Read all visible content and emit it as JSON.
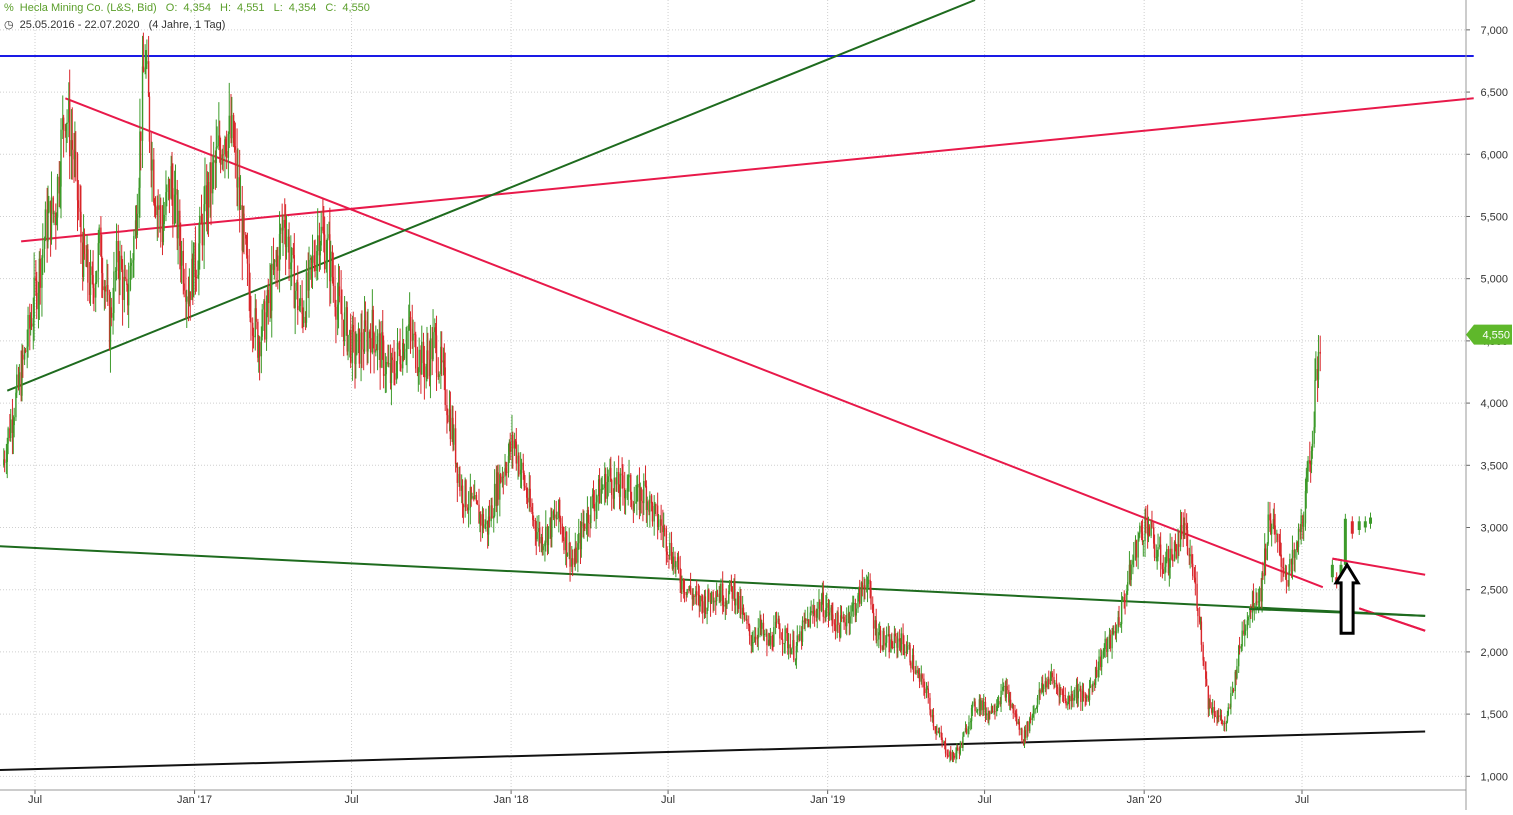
{
  "header": {
    "instrument": "Hecla Mining Co. (L&S, Bid)",
    "open_label": "O:",
    "open": "4,354",
    "high_label": "H:",
    "high": "4,551",
    "low_label": "L:",
    "low": "4,354",
    "close_label": "C:",
    "close": "4,550",
    "date_range": "25.05.2016 - 22.07.2020",
    "period": "(4 Jahre, 1 Tag)"
  },
  "colors": {
    "up_candle": "#3c9a2a",
    "down_candle": "#d9262b",
    "horizontal_line": "#1a1ae6",
    "red_line": "#e8194a",
    "green_line": "#1e6b1e",
    "black_line": "#111111",
    "price_tag": "#5fb82b",
    "grid": "#cfcfcf"
  },
  "chart_data": {
    "type": "candlestick",
    "y_ticks": [
      "1,000",
      "1,500",
      "2,000",
      "2,500",
      "3,000",
      "3,500",
      "4,000",
      "4,500",
      "5,000",
      "5,500",
      "6,000",
      "6,500",
      "7,000"
    ],
    "ylim": [
      0.89,
      7.24
    ],
    "x_ticks": [
      "Jul",
      "Jan '17",
      "Jul",
      "Jan '18",
      "Jul",
      "Jan '19",
      "Jul",
      "Jan '20",
      "Jul"
    ],
    "last_price_label": "4,550",
    "last_price": 4.55,
    "close_path": [
      [
        "2016-05-25",
        3.5
      ],
      [
        "2016-06-05",
        3.9
      ],
      [
        "2016-06-15",
        4.2
      ],
      [
        "2016-06-25",
        4.6
      ],
      [
        "2016-07-05",
        5.0
      ],
      [
        "2016-07-15",
        5.45
      ],
      [
        "2016-07-25",
        5.55
      ],
      [
        "2016-08-05",
        6.4
      ],
      [
        "2016-08-15",
        6.0
      ],
      [
        "2016-08-25",
        5.2
      ],
      [
        "2016-09-05",
        4.9
      ],
      [
        "2016-09-15",
        5.3
      ],
      [
        "2016-09-25",
        4.6
      ],
      [
        "2016-10-05",
        5.2
      ],
      [
        "2016-10-15",
        4.8
      ],
      [
        "2016-10-25",
        5.4
      ],
      [
        "2016-11-05",
        6.8
      ],
      [
        "2016-11-15",
        5.8
      ],
      [
        "2016-11-25",
        5.4
      ],
      [
        "2016-12-05",
        5.8
      ],
      [
        "2016-12-15",
        5.3
      ],
      [
        "2016-12-25",
        4.9
      ],
      [
        "2017-01-05",
        5.2
      ],
      [
        "2017-01-15",
        5.6
      ],
      [
        "2017-01-25",
        5.9
      ],
      [
        "2017-02-05",
        6.2
      ],
      [
        "2017-02-15",
        6.1
      ],
      [
        "2017-02-25",
        5.4
      ],
      [
        "2017-03-05",
        4.9
      ],
      [
        "2017-03-15",
        4.5
      ],
      [
        "2017-03-25",
        4.7
      ],
      [
        "2017-04-05",
        5.1
      ],
      [
        "2017-04-15",
        5.5
      ],
      [
        "2017-04-25",
        5.0
      ],
      [
        "2017-05-05",
        4.7
      ],
      [
        "2017-05-15",
        5.0
      ],
      [
        "2017-05-25",
        5.4
      ],
      [
        "2017-06-05",
        5.2
      ],
      [
        "2017-06-15",
        4.8
      ],
      [
        "2017-06-25",
        4.6
      ],
      [
        "2017-07-05",
        4.4
      ],
      [
        "2017-07-15",
        4.5
      ],
      [
        "2017-07-25",
        4.6
      ],
      [
        "2017-08-05",
        4.4
      ],
      [
        "2017-08-15",
        4.2
      ],
      [
        "2017-08-25",
        4.4
      ],
      [
        "2017-09-05",
        4.6
      ],
      [
        "2017-09-15",
        4.4
      ],
      [
        "2017-09-25",
        4.3
      ],
      [
        "2017-10-05",
        4.5
      ],
      [
        "2017-10-15",
        4.2
      ],
      [
        "2017-10-25",
        3.8
      ],
      [
        "2017-11-05",
        3.3
      ],
      [
        "2017-11-15",
        3.2
      ],
      [
        "2017-11-25",
        3.1
      ],
      [
        "2017-12-05",
        3.0
      ],
      [
        "2017-12-15",
        3.3
      ],
      [
        "2017-12-25",
        3.5
      ],
      [
        "2018-01-05",
        3.7
      ],
      [
        "2018-01-15",
        3.4
      ],
      [
        "2018-01-25",
        3.1
      ],
      [
        "2018-02-05",
        2.9
      ],
      [
        "2018-02-15",
        3.0
      ],
      [
        "2018-02-25",
        3.1
      ],
      [
        "2018-03-05",
        2.9
      ],
      [
        "2018-03-15",
        2.7
      ],
      [
        "2018-03-25",
        3.0
      ],
      [
        "2018-04-05",
        3.2
      ],
      [
        "2018-04-15",
        3.3
      ],
      [
        "2018-04-25",
        3.4
      ],
      [
        "2018-05-05",
        3.3
      ],
      [
        "2018-05-15",
        3.35
      ],
      [
        "2018-05-25",
        3.2
      ],
      [
        "2018-06-05",
        3.3
      ],
      [
        "2018-06-15",
        3.1
      ],
      [
        "2018-06-25",
        3.0
      ],
      [
        "2018-07-05",
        2.8
      ],
      [
        "2018-07-15",
        2.6
      ],
      [
        "2018-07-25",
        2.5
      ],
      [
        "2018-08-05",
        2.4
      ],
      [
        "2018-08-15",
        2.4
      ],
      [
        "2018-08-25",
        2.5
      ],
      [
        "2018-09-05",
        2.45
      ],
      [
        "2018-09-15",
        2.5
      ],
      [
        "2018-09-25",
        2.3
      ],
      [
        "2018-10-05",
        2.1
      ],
      [
        "2018-10-15",
        2.2
      ],
      [
        "2018-10-25",
        2.05
      ],
      [
        "2018-11-05",
        2.2
      ],
      [
        "2018-11-15",
        2.1
      ],
      [
        "2018-11-25",
        2.0
      ],
      [
        "2018-12-05",
        2.2
      ],
      [
        "2018-12-15",
        2.3
      ],
      [
        "2018-12-25",
        2.4
      ],
      [
        "2019-01-05",
        2.3
      ],
      [
        "2019-01-15",
        2.2
      ],
      [
        "2019-01-25",
        2.3
      ],
      [
        "2019-02-05",
        2.4
      ],
      [
        "2019-02-15",
        2.6
      ],
      [
        "2019-02-25",
        2.2
      ],
      [
        "2019-03-05",
        2.1
      ],
      [
        "2019-03-15",
        2.05
      ],
      [
        "2019-03-25",
        2.1
      ],
      [
        "2019-04-05",
        2.0
      ],
      [
        "2019-04-15",
        1.8
      ],
      [
        "2019-04-25",
        1.7
      ],
      [
        "2019-05-05",
        1.4
      ],
      [
        "2019-05-15",
        1.25
      ],
      [
        "2019-05-25",
        1.15
      ],
      [
        "2019-06-05",
        1.25
      ],
      [
        "2019-06-15",
        1.5
      ],
      [
        "2019-06-25",
        1.6
      ],
      [
        "2019-07-05",
        1.5
      ],
      [
        "2019-07-15",
        1.6
      ],
      [
        "2019-07-25",
        1.7
      ],
      [
        "2019-08-05",
        1.5
      ],
      [
        "2019-08-15",
        1.3
      ],
      [
        "2019-08-25",
        1.5
      ],
      [
        "2019-09-05",
        1.7
      ],
      [
        "2019-09-15",
        1.8
      ],
      [
        "2019-09-25",
        1.7
      ],
      [
        "2019-10-05",
        1.6
      ],
      [
        "2019-10-15",
        1.7
      ],
      [
        "2019-10-25",
        1.6
      ],
      [
        "2019-11-05",
        1.8
      ],
      [
        "2019-11-15",
        2.0
      ],
      [
        "2019-11-25",
        2.1
      ],
      [
        "2019-12-05",
        2.3
      ],
      [
        "2019-12-15",
        2.6
      ],
      [
        "2019-12-25",
        2.9
      ],
      [
        "2020-01-05",
        3.05
      ],
      [
        "2020-01-15",
        2.8
      ],
      [
        "2020-01-25",
        2.7
      ],
      [
        "2020-02-05",
        2.8
      ],
      [
        "2020-02-15",
        3.0
      ],
      [
        "2020-02-25",
        2.7
      ],
      [
        "2020-03-05",
        2.3
      ],
      [
        "2020-03-15",
        1.6
      ],
      [
        "2020-03-25",
        1.5
      ],
      [
        "2020-04-05",
        1.4
      ],
      [
        "2020-04-15",
        1.8
      ],
      [
        "2020-04-25",
        2.2
      ],
      [
        "2020-05-05",
        2.4
      ],
      [
        "2020-05-15",
        2.5
      ],
      [
        "2020-05-25",
        3.1
      ],
      [
        "2020-06-05",
        2.8
      ],
      [
        "2020-06-15",
        2.6
      ],
      [
        "2020-06-25",
        2.8
      ],
      [
        "2020-07-05",
        3.2
      ],
      [
        "2020-07-10",
        3.5
      ],
      [
        "2020-07-15",
        3.9
      ],
      [
        "2020-07-22",
        4.55
      ]
    ],
    "forecast_candles": [
      [
        "2020-08-05",
        2.6,
        2.7
      ],
      [
        "2020-08-10",
        2.6,
        2.55
      ],
      [
        "2020-08-15",
        2.62,
        2.7
      ],
      [
        "2020-08-20",
        2.7,
        3.07
      ],
      [
        "2020-08-28",
        3.05,
        2.95
      ],
      [
        "2020-09-05",
        2.98,
        3.05
      ],
      [
        "2020-09-12",
        3.0,
        3.05
      ],
      [
        "2020-09-18",
        3.03,
        3.08
      ]
    ],
    "trend_lines": [
      {
        "color": "horizontal_line",
        "from": [
          "2016-05-20",
          6.79
        ],
        "to": [
          "2021-01-15",
          6.79
        ]
      },
      {
        "color": "red_line",
        "from": [
          "2016-06-15",
          5.3
        ],
        "to": [
          "2021-01-15",
          6.45
        ]
      },
      {
        "color": "red_line",
        "from": [
          "2016-08-05",
          6.45
        ],
        "to": [
          "2020-07-25",
          2.52
        ]
      },
      {
        "color": "red_line",
        "from": [
          "2020-08-05",
          2.75
        ],
        "to": [
          "2020-11-20",
          2.62
        ]
      },
      {
        "color": "red_line",
        "from": [
          "2020-09-05",
          2.35
        ],
        "to": [
          "2020-11-20",
          2.17
        ]
      },
      {
        "color": "green_line",
        "from": [
          "2016-05-30",
          4.1
        ],
        "to": [
          "2019-06-20",
          7.24
        ]
      },
      {
        "color": "green_line",
        "from": [
          "2016-05-20",
          2.85
        ],
        "to": [
          "2020-11-20",
          2.29
        ]
      },
      {
        "color": "black_line",
        "from": [
          "2016-05-20",
          1.05
        ],
        "to": [
          "2020-11-20",
          1.36
        ]
      }
    ],
    "marker_arrow": {
      "date": "2020-08-22",
      "tip": 2.7,
      "base": 2.15
    }
  }
}
